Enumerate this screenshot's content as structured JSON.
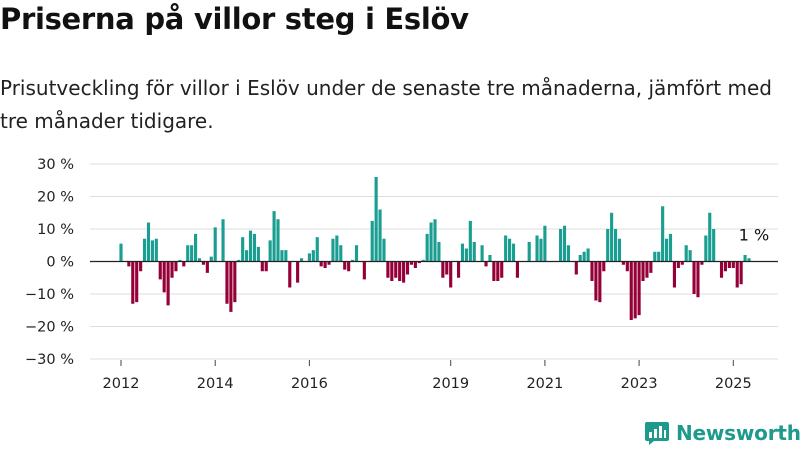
{
  "header": {
    "title": "Priserna på villor steg i Eslöv",
    "subtitle": "Prisutveckling för villor i Eslöv under de senaste tre månaderna, jämfört med tre månader tidigare."
  },
  "brand": {
    "name": "Newsworthy",
    "icon": "newsworthy-logo-icon"
  },
  "colors": {
    "positive": "#1a9e91",
    "negative": "#960038",
    "grid": "#dedede",
    "zero": "#222222"
  },
  "chart_data": {
    "type": "bar",
    "title": "Priserna på villor steg i Eslöv",
    "subtitle": "Prisutveckling för villor i Eslöv under de senaste tre månaderna, jämfört med tre månader tidigare.",
    "xlabel": "",
    "ylabel": "",
    "ylim": [
      -30,
      30
    ],
    "grid": true,
    "yticks": [
      30,
      20,
      10,
      0,
      -10,
      -20,
      -30
    ],
    "ytick_labels": [
      "30 %",
      "20 %",
      "10 %",
      "0 %",
      "−10 %",
      "−20 %",
      "−30 %"
    ],
    "xticks": [
      2012,
      2014,
      2016,
      2019,
      2021,
      2023,
      2025
    ],
    "xtick_labels": [
      "2012",
      "2014",
      "2016",
      "2019",
      "2021",
      "2023",
      "2025"
    ],
    "x_start": "2012-01",
    "frequency": "monthly",
    "annotation": {
      "label": "1 %",
      "x": "2025-05",
      "value": 1
    },
    "values": [
      5.5,
      0,
      -1.5,
      -13,
      -12.5,
      -3,
      7,
      12,
      6.5,
      7,
      -5.5,
      -9.5,
      -13.5,
      -5,
      -3,
      0.5,
      -1.5,
      5,
      5,
      8.5,
      1,
      -1,
      -3.5,
      1.5,
      10.5,
      0,
      13,
      -13,
      -15.5,
      -12.5,
      0.5,
      7.5,
      3.5,
      9.5,
      8.5,
      4.5,
      -3,
      -3,
      6.5,
      15.5,
      13,
      3.5,
      3.5,
      -8,
      0,
      -6.5,
      1,
      0,
      2.5,
      3.5,
      7.5,
      -1.5,
      -2,
      -1,
      7,
      8,
      5,
      -2.5,
      -3,
      0.5,
      5,
      0,
      -5.5,
      0,
      12.5,
      26,
      16,
      7,
      -5,
      -6,
      -5,
      -6,
      -6.5,
      -4,
      -1,
      -2,
      -0.5,
      0.5,
      8.5,
      12,
      13,
      6,
      -5,
      -4,
      -8,
      0,
      -5,
      5.5,
      4,
      12.5,
      6,
      0,
      5,
      -1.5,
      2,
      -6,
      -6,
      -5,
      8,
      7,
      5.5,
      -5,
      0,
      0,
      6,
      0,
      8,
      7,
      11,
      0,
      0,
      0,
      10,
      11,
      5,
      0,
      -4,
      2,
      3,
      4,
      -6,
      -12,
      -12.5,
      -3,
      10,
      15,
      10,
      7,
      -1,
      -3,
      -18,
      -17.5,
      -16.5,
      -6,
      -5,
      -3.5,
      3,
      3,
      17,
      7,
      8.5,
      -8,
      -2,
      -1,
      5,
      3.5,
      -10,
      -11,
      -1,
      8,
      15,
      10,
      0,
      -5,
      -3,
      -2,
      -2,
      -8,
      -7,
      2,
      1
    ]
  }
}
